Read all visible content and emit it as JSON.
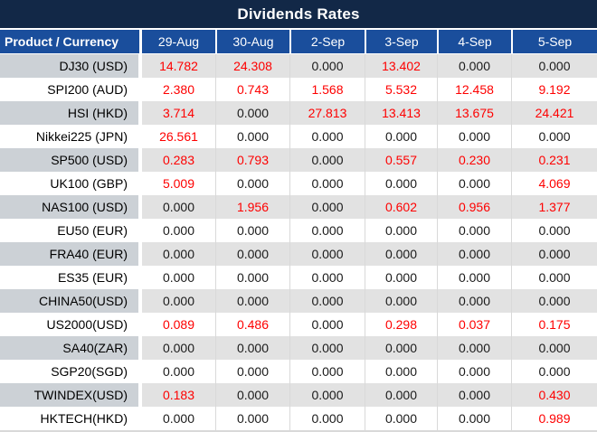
{
  "title": "Dividends Rates",
  "colors": {
    "title_bar_bg": "#122847",
    "header_bg": "#1a4e9c",
    "stripe_label_bg": "#ccd1d6",
    "stripe_value_bg": "#e2e2e2",
    "highlight_red": "#fe0000",
    "gridline": "#d9d9d9"
  },
  "chart_data": {
    "type": "table",
    "title": "Dividends Rates",
    "product_header": "Product / Currency",
    "columns": [
      "29-Aug",
      "30-Aug",
      "2-Sep",
      "3-Sep",
      "4-Sep",
      "5-Sep"
    ],
    "rows": [
      {
        "product": "DJ30 (USD)",
        "values": [
          "14.782",
          "24.308",
          "0.000",
          "13.402",
          "0.000",
          "0.000"
        ]
      },
      {
        "product": "SPI200 (AUD)",
        "values": [
          "2.380",
          "0.743",
          "1.568",
          "5.532",
          "12.458",
          "9.192"
        ]
      },
      {
        "product": "HSI (HKD)",
        "values": [
          "3.714",
          "0.000",
          "27.813",
          "13.413",
          "13.675",
          "24.421"
        ]
      },
      {
        "product": "Nikkei225 (JPN)",
        "values": [
          "26.561",
          "0.000",
          "0.000",
          "0.000",
          "0.000",
          "0.000"
        ]
      },
      {
        "product": "SP500 (USD)",
        "values": [
          "0.283",
          "0.793",
          "0.000",
          "0.557",
          "0.230",
          "0.231"
        ]
      },
      {
        "product": "UK100 (GBP)",
        "values": [
          "5.009",
          "0.000",
          "0.000",
          "0.000",
          "0.000",
          "4.069"
        ]
      },
      {
        "product": "NAS100 (USD)",
        "values": [
          "0.000",
          "1.956",
          "0.000",
          "0.602",
          "0.956",
          "1.377"
        ]
      },
      {
        "product": "EU50 (EUR)",
        "values": [
          "0.000",
          "0.000",
          "0.000",
          "0.000",
          "0.000",
          "0.000"
        ]
      },
      {
        "product": "FRA40 (EUR)",
        "values": [
          "0.000",
          "0.000",
          "0.000",
          "0.000",
          "0.000",
          "0.000"
        ]
      },
      {
        "product": "ES35 (EUR)",
        "values": [
          "0.000",
          "0.000",
          "0.000",
          "0.000",
          "0.000",
          "0.000"
        ]
      },
      {
        "product": "CHINA50(USD)",
        "values": [
          "0.000",
          "0.000",
          "0.000",
          "0.000",
          "0.000",
          "0.000"
        ]
      },
      {
        "product": "US2000(USD)",
        "values": [
          "0.089",
          "0.486",
          "0.000",
          "0.298",
          "0.037",
          "0.175"
        ]
      },
      {
        "product": "SA40(ZAR)",
        "values": [
          "0.000",
          "0.000",
          "0.000",
          "0.000",
          "0.000",
          "0.000"
        ]
      },
      {
        "product": "SGP20(SGD)",
        "values": [
          "0.000",
          "0.000",
          "0.000",
          "0.000",
          "0.000",
          "0.000"
        ]
      },
      {
        "product": "TWINDEX(USD)",
        "values": [
          "0.183",
          "0.000",
          "0.000",
          "0.000",
          "0.000",
          "0.430"
        ]
      },
      {
        "product": "HKTECH(HKD)",
        "values": [
          "0.000",
          "0.000",
          "0.000",
          "0.000",
          "0.000",
          "0.989"
        ]
      }
    ],
    "value_style_rule": "non-zero values shown in red, zero values in black",
    "layout_hints": {
      "striped_rows": "odd rows gray",
      "header_position": "top"
    }
  }
}
